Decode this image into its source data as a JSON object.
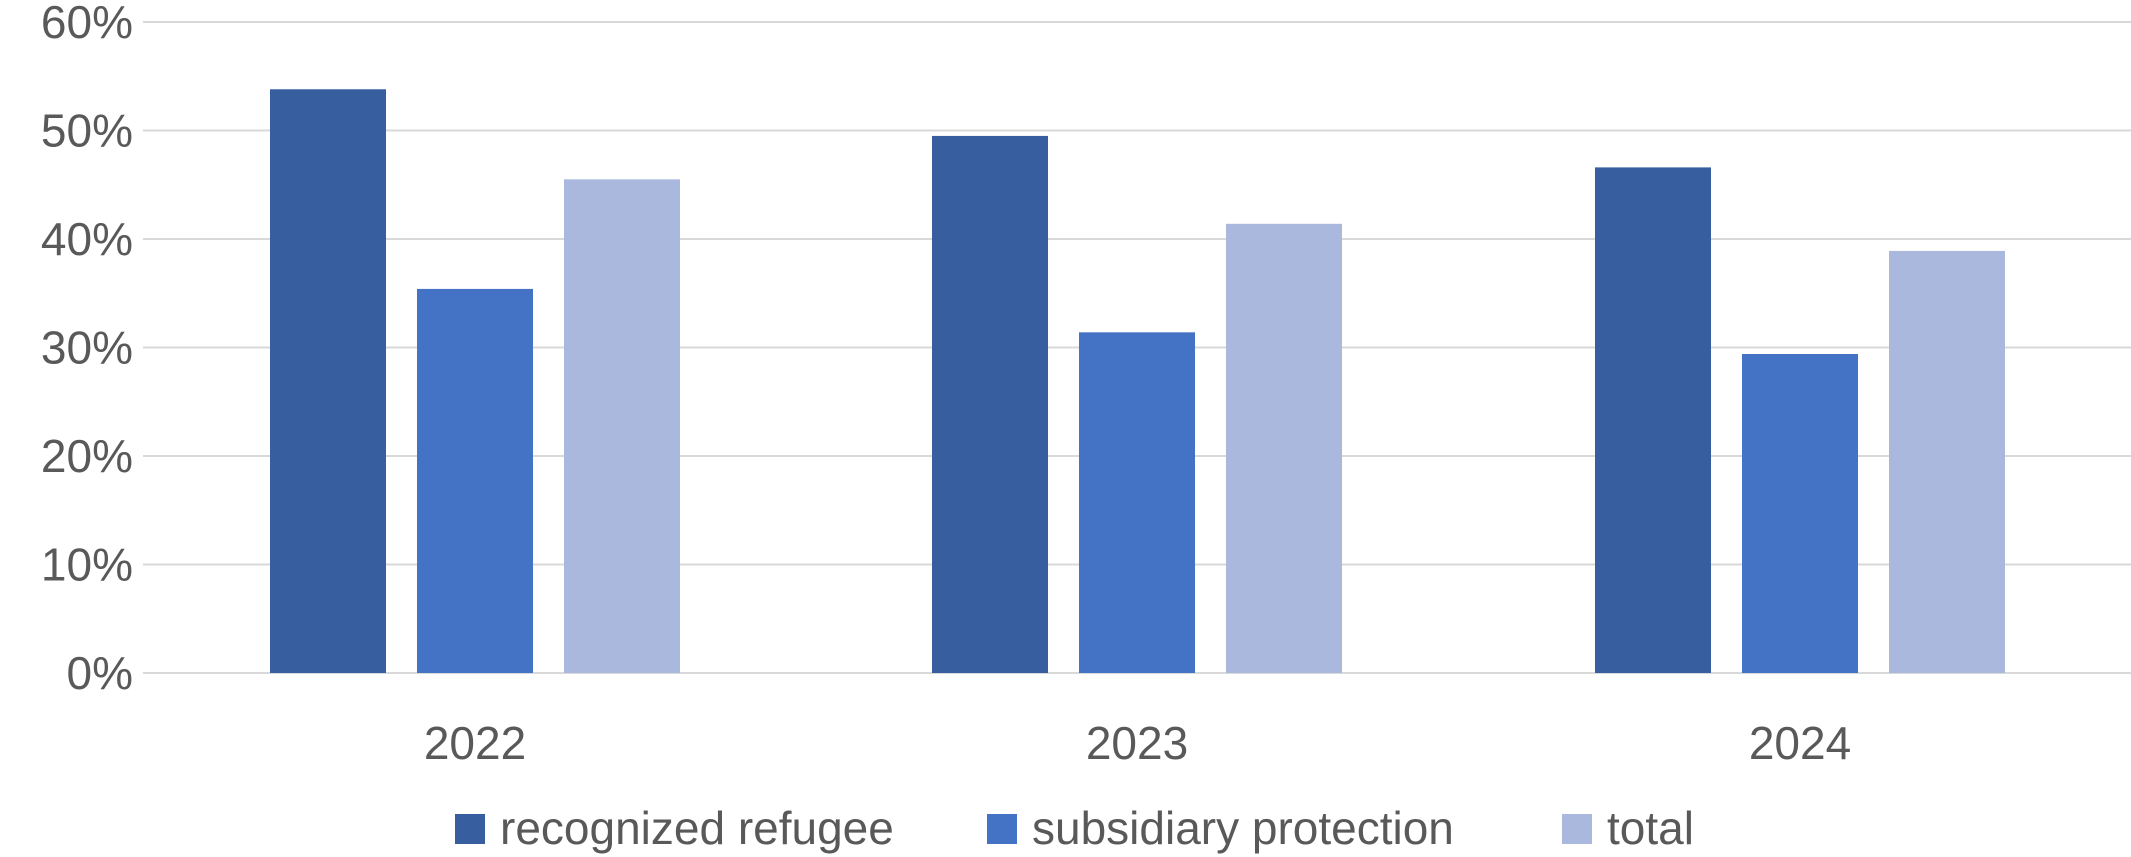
{
  "chart_data": {
    "type": "bar",
    "categories": [
      "2022",
      "2023",
      "2024"
    ],
    "series": [
      {
        "name": "recognized refugee",
        "color": "#375e9f",
        "values": [
          53.8,
          49.5,
          46.6
        ]
      },
      {
        "name": "subsidiary protection",
        "color": "#4472c4",
        "values": [
          35.4,
          31.4,
          29.4
        ]
      },
      {
        "name": "total",
        "color": "#a9b8dc",
        "values": [
          45.5,
          41.4,
          38.9
        ]
      }
    ],
    "ylim": [
      0,
      60
    ],
    "yticks": [
      0,
      10,
      20,
      30,
      40,
      50,
      60
    ],
    "ytick_labels": [
      "0%",
      "10%",
      "20%",
      "30%",
      "40%",
      "50%",
      "60%"
    ],
    "grid": true,
    "legend_position": "bottom"
  }
}
